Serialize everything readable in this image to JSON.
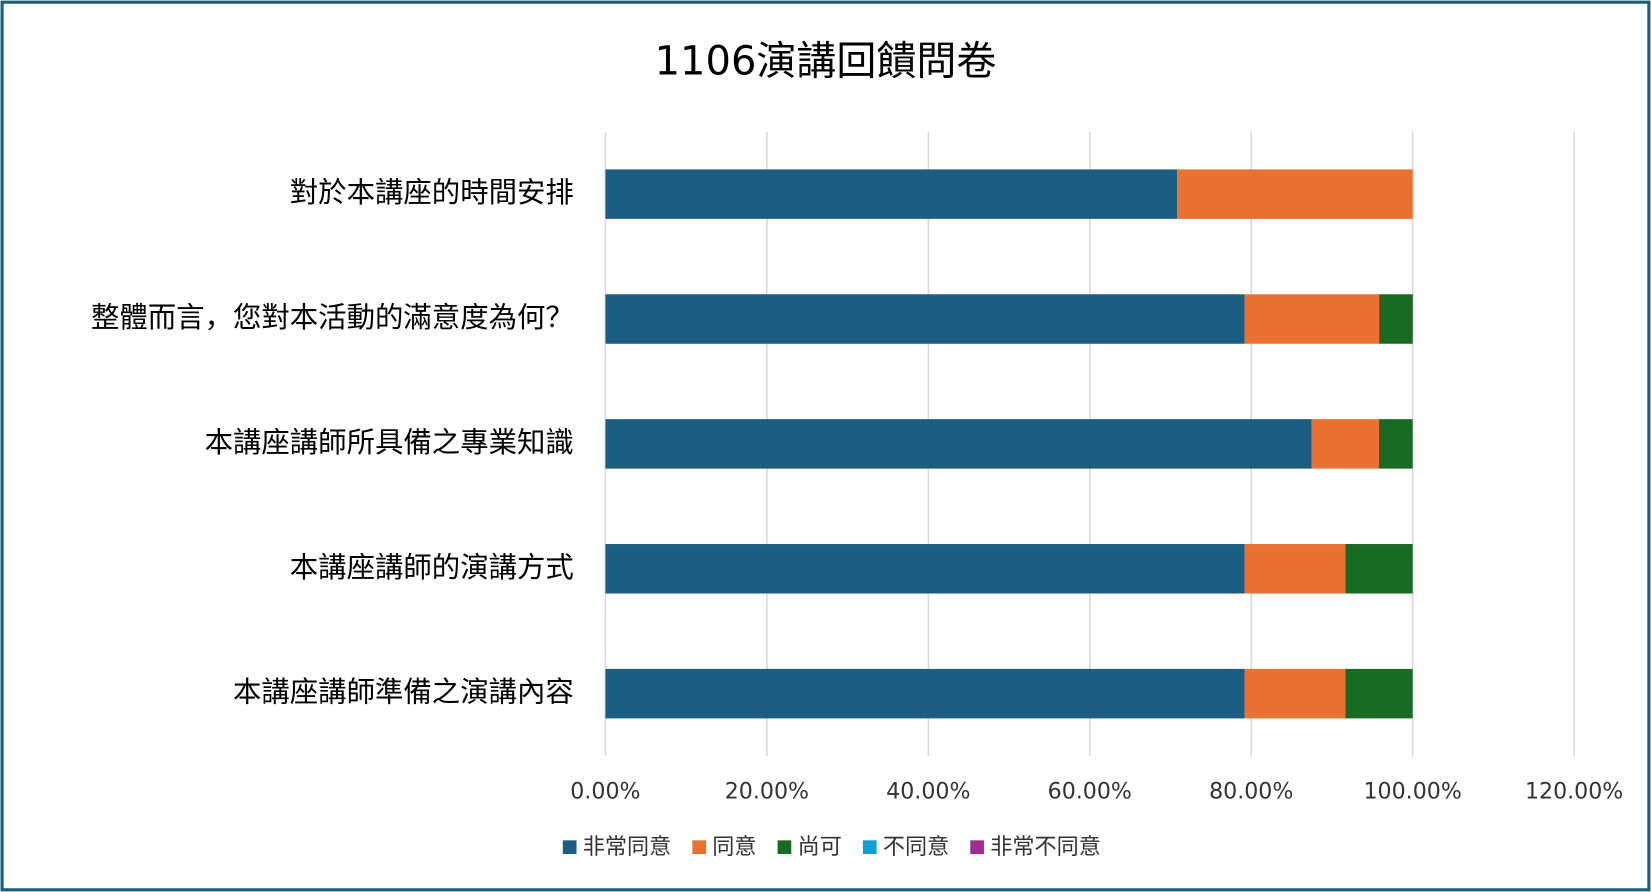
{
  "chart_data": {
    "type": "stacked_barh",
    "title": "1106演講回饋問卷",
    "categories": [
      "對於本講座的時間安排",
      "整體而言，您對本活動的滿意度為何？",
      "本講座講師所具備之專業知識",
      "本講座講師的演講方式",
      "本講座講師準備之演講內容"
    ],
    "series": [
      {
        "name": "非常同意",
        "color": "#1b5e82",
        "values": [
          70.83,
          79.17,
          87.5,
          79.17,
          79.17
        ]
      },
      {
        "name": "同意",
        "color": "#e97132",
        "values": [
          29.17,
          16.67,
          8.33,
          12.5,
          12.5
        ]
      },
      {
        "name": "尚可",
        "color": "#196b24",
        "values": [
          0,
          4.17,
          4.17,
          8.33,
          8.33
        ]
      },
      {
        "name": "不同意",
        "color": "#0f9ed5",
        "values": [
          0,
          0,
          0,
          0,
          0
        ]
      },
      {
        "name": "非常不同意",
        "color": "#a02b93",
        "values": [
          0,
          0,
          0,
          0,
          0
        ]
      }
    ],
    "xlim": [
      0,
      120
    ],
    "xticks": [
      {
        "value": 0,
        "label": "0.00%"
      },
      {
        "value": 20,
        "label": "20.00%"
      },
      {
        "value": 40,
        "label": "40.00%"
      },
      {
        "value": 60,
        "label": "60.00%"
      },
      {
        "value": 80,
        "label": "80.00%"
      },
      {
        "value": 100,
        "label": "100.00%"
      },
      {
        "value": 120,
        "label": "120.00%"
      }
    ],
    "grid": true,
    "legend": "bottom"
  }
}
